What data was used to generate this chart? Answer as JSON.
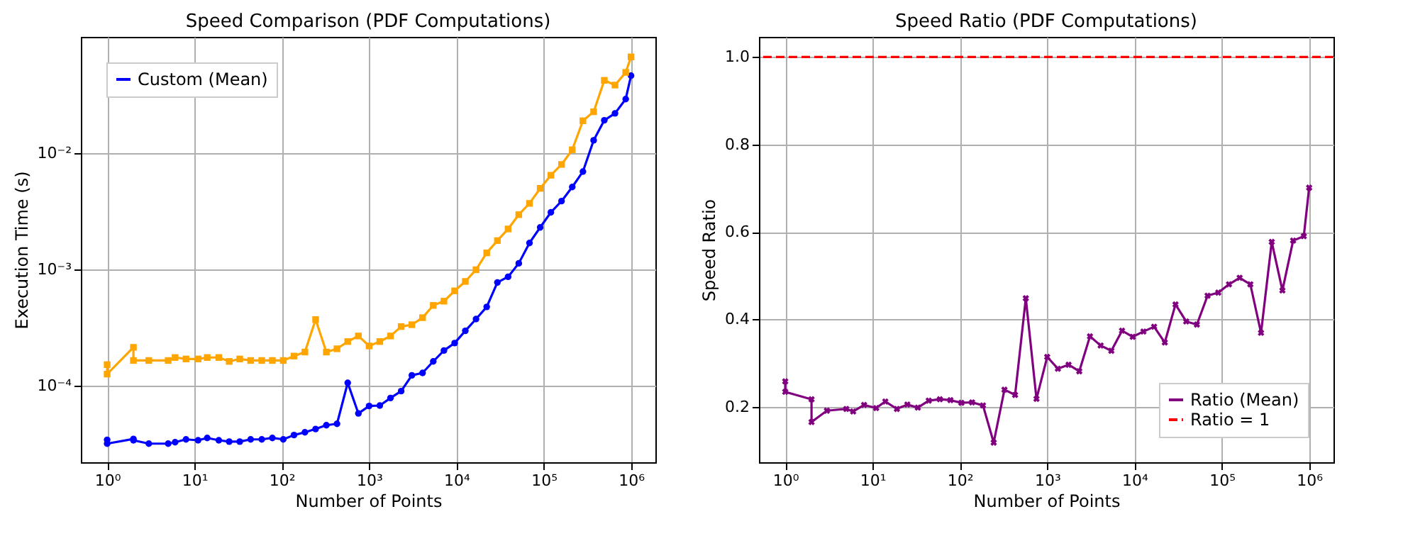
{
  "chart_data": [
    {
      "type": "line",
      "title": "Speed Comparison (PDF Computations)",
      "xlabel": "Number of Points",
      "ylabel": "Execution Time (s)",
      "log": "xy",
      "grid": true,
      "legend": "top left",
      "x": [
        1,
        1,
        2,
        2,
        3,
        5,
        6,
        8,
        11,
        14,
        19,
        25,
        33,
        44,
        59,
        78,
        104,
        138,
        184,
        244,
        324,
        429,
        569,
        754,
        1000,
        1326,
        1758,
        2330,
        3089,
        4095,
        5429,
        7197,
        9541,
        12649,
        16768,
        22230,
        29471,
        39069,
        51795,
        68665,
        91030,
        120679,
        159986,
        212095,
        281177,
        372759,
        494171,
        655129,
        868511,
        1000000
      ],
      "series": [
        {
          "name": "Custom (Mean)",
          "color": "#0000ff",
          "marker": "circle",
          "values": [
            3.43e-05,
            3.18e-05,
            3.49e-05,
            3.4e-05,
            3.18e-05,
            3.18e-05,
            3.27e-05,
            3.46e-05,
            3.4e-05,
            3.56e-05,
            3.4e-05,
            3.31e-05,
            3.31e-05,
            3.46e-05,
            3.46e-05,
            3.56e-05,
            3.46e-05,
            3.77e-05,
            3.98e-05,
            4.25e-05,
            4.58e-05,
            4.71e-05,
            0.000106,
            5.78e-05,
            6.7e-05,
            6.76e-05,
            7.85e-05,
            9e-05,
            0.000123,
            0.000129,
            0.000162,
            0.000201,
            0.000233,
            0.000297,
            0.000375,
            0.000477,
            0.000774,
            0.000865,
            0.00113,
            0.00169,
            0.0023,
            0.0031,
            0.00387,
            0.00512,
            0.00695,
            0.0129,
            0.0192,
            0.022,
            0.0292,
            0.0464
          ]
        },
        {
          "color": "#ffa500",
          "marker": "square",
          "values": [
            0.000152,
            0.000126,
            0.000214,
            0.000165,
            0.000165,
            0.000165,
            0.000175,
            0.00017,
            0.00017,
            0.000175,
            0.000175,
            0.000162,
            0.00017,
            0.000165,
            0.000165,
            0.000165,
            0.000165,
            0.00018,
            0.000195,
            0.000371,
            0.000195,
            0.000208,
            0.00024,
            0.000268,
            0.00022,
            0.00024,
            0.000268,
            0.000323,
            0.000335,
            0.000385,
            0.000491,
            0.000534,
            0.000655,
            0.000789,
            0.000995,
            0.00139,
            0.00177,
            0.00223,
            0.00296,
            0.0037,
            0.00498,
            0.00646,
            0.008,
            0.0107,
            0.019,
            0.0227,
            0.0423,
            0.0385,
            0.0495,
            0.0673
          ]
        }
      ],
      "xlim": [
        0.5,
        1900000
      ],
      "ylim": [
        2.2e-05,
        0.1
      ],
      "xticks": [
        {
          "value": 1,
          "label": "10⁰"
        },
        {
          "value": 10,
          "label": "10¹"
        },
        {
          "value": 100,
          "label": "10²"
        },
        {
          "value": 1000,
          "label": "10³"
        },
        {
          "value": 10000,
          "label": "10⁴"
        },
        {
          "value": 100000,
          "label": "10⁵"
        },
        {
          "value": 1000000,
          "label": "10⁶"
        }
      ],
      "yticks": [
        {
          "value": 0.0001,
          "label": "10⁻⁴"
        },
        {
          "value": 0.001,
          "label": "10⁻³"
        },
        {
          "value": 0.01,
          "label": "10⁻²"
        }
      ]
    },
    {
      "type": "line",
      "title": "Speed Ratio (PDF Computations)",
      "xlabel": "Number of Points",
      "ylabel": "Speed Ratio",
      "log": "x",
      "grid": true,
      "legend": "bottom right",
      "x": [
        1,
        1,
        2,
        2,
        3,
        5,
        6,
        8,
        11,
        14,
        19,
        25,
        33,
        44,
        59,
        78,
        104,
        138,
        184,
        244,
        324,
        429,
        569,
        754,
        1000,
        1326,
        1758,
        2330,
        3089,
        4095,
        5429,
        7197,
        9541,
        12649,
        16768,
        22230,
        29471,
        39069,
        51795,
        68665,
        91030,
        120679,
        159986,
        212095,
        281177,
        372759,
        494171,
        655129,
        868511,
        1000000
      ],
      "series": [
        {
          "name": "Ratio (Mean)",
          "color": "#800080",
          "marker": "cross",
          "line_style": "solid",
          "values": [
            0.258,
            0.234,
            0.217,
            0.165,
            0.191,
            0.195,
            0.189,
            0.204,
            0.197,
            0.212,
            0.195,
            0.205,
            0.198,
            0.214,
            0.217,
            0.215,
            0.209,
            0.21,
            0.203,
            0.118,
            0.239,
            0.227,
            0.448,
            0.218,
            0.314,
            0.287,
            0.296,
            0.281,
            0.361,
            0.34,
            0.328,
            0.374,
            0.36,
            0.372,
            0.383,
            0.347,
            0.434,
            0.395,
            0.388,
            0.454,
            0.461,
            0.48,
            0.495,
            0.48,
            0.369,
            0.577,
            0.466,
            0.58,
            0.59,
            0.701
          ]
        }
      ],
      "ref_lines": [
        {
          "axis": "y",
          "value": 1,
          "label": "Ratio = 1",
          "color": "#ff0000",
          "line_style": "dashed"
        }
      ],
      "xlim": [
        0.5,
        1900000
      ],
      "ylim": [
        0.073,
        1.046
      ],
      "xticks": [
        {
          "value": 1,
          "label": "10⁰"
        },
        {
          "value": 10,
          "label": "10¹"
        },
        {
          "value": 100,
          "label": "10²"
        },
        {
          "value": 1000,
          "label": "10³"
        },
        {
          "value": 10000,
          "label": "10⁴"
        },
        {
          "value": 100000,
          "label": "10⁵"
        },
        {
          "value": 1000000,
          "label": "10⁶"
        }
      ],
      "yticks": [
        0.2,
        0.4,
        0.6,
        0.8,
        {
          "value": 1,
          "label": "1.0"
        }
      ]
    }
  ]
}
